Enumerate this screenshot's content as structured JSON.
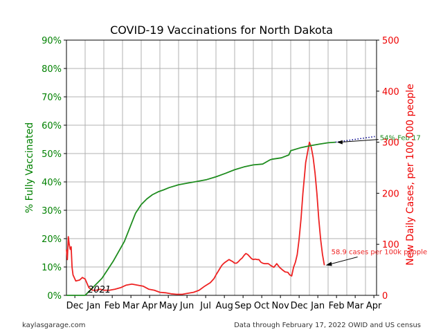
{
  "chart_data": {
    "type": "line",
    "title": "COVID-19 Vaccinations for North Dakota",
    "ylabel_left": "% Fully Vaccinated",
    "ylabel_right": "New Daily Cases, per 100,000 people",
    "ylim_left": [
      0,
      90
    ],
    "ylim_right": [
      0,
      500
    ],
    "left_ticks": [
      "0%",
      "10%",
      "20%",
      "30%",
      "40%",
      "50%",
      "60%",
      "70%",
      "80%",
      "90%"
    ],
    "right_ticks": [
      "0",
      "100",
      "200",
      "300",
      "400",
      "500"
    ],
    "x_ticks": [
      "Dec",
      "Jan",
      "Feb",
      "Mar",
      "Apr",
      "May",
      "Jun",
      "Jul",
      "Aug",
      "Sep",
      "Oct",
      "Nov",
      "Dec",
      "Jan",
      "Feb",
      "Mar",
      "Apr"
    ],
    "year_label": "2021",
    "grid": true,
    "colors": {
      "vaccinated": "#1e8c1e",
      "cases": "#ee2222",
      "projection": "#00008b",
      "left_axis": "#008000",
      "right_axis": "#ee0000"
    },
    "series": [
      {
        "id": "vaccinated",
        "axis": "left",
        "x_months": [
          0.0,
          1.0,
          1.3,
          1.6,
          1.9,
          2.2,
          2.5,
          2.8,
          3.1,
          3.4,
          3.7,
          4.0,
          4.3,
          4.6,
          4.9,
          5.2,
          5.5,
          6.0,
          6.5,
          7.0,
          7.5,
          8.0,
          8.5,
          9.0,
          9.5,
          10.0,
          10.5,
          10.9,
          11.0,
          11.5,
          11.9,
          12.0,
          12.5,
          13.0,
          13.5,
          14.0,
          14.4
        ],
        "values": [
          0.0,
          0.0,
          2.0,
          4.0,
          6.0,
          9.0,
          12.0,
          15.5,
          19.0,
          24.0,
          29.0,
          32.0,
          34.0,
          35.5,
          36.5,
          37.2,
          38.0,
          39.0,
          39.6,
          40.2,
          40.8,
          41.8,
          43.0,
          44.3,
          45.3,
          46.0,
          46.3,
          47.8,
          48.0,
          48.5,
          49.5,
          51.0,
          52.0,
          52.7,
          53.3,
          53.8,
          54.0
        ]
      },
      {
        "id": "cases",
        "axis": "right",
        "x_months": [
          0.0,
          0.05,
          0.1,
          0.15,
          0.2,
          0.25,
          0.3,
          0.35,
          0.5,
          0.7,
          0.85,
          1.0,
          1.2,
          1.4,
          1.6,
          1.8,
          2.0,
          2.3,
          2.6,
          2.9,
          3.2,
          3.5,
          3.8,
          4.1,
          4.4,
          4.7,
          5.0,
          5.3,
          5.6,
          5.9,
          6.2,
          6.5,
          6.8,
          7.1,
          7.4,
          7.7,
          7.9,
          8.0,
          8.1,
          8.2,
          8.3,
          8.4,
          8.5,
          8.7,
          8.8,
          8.9,
          9.0,
          9.1,
          9.2,
          9.3,
          9.4,
          9.5,
          9.6,
          9.7,
          9.8,
          9.9,
          10.0,
          10.1,
          10.2,
          10.3,
          10.4,
          10.5,
          10.6,
          10.8,
          10.95,
          11.1,
          11.25,
          11.4,
          11.55,
          11.7,
          11.85,
          11.95,
          12.05,
          12.15,
          12.25,
          12.35,
          12.45,
          12.55,
          12.65,
          12.75,
          12.8,
          12.9,
          13.0,
          13.1,
          13.2,
          13.3,
          13.4,
          13.5,
          13.6,
          13.7,
          13.8
        ],
        "values": [
          90,
          70,
          115,
          100,
          90,
          95,
          55,
          40,
          28,
          30,
          35,
          32,
          15,
          10,
          10,
          12,
          10,
          10,
          12,
          15,
          20,
          22,
          20,
          18,
          12,
          10,
          6,
          5,
          3,
          2,
          2,
          4,
          6,
          10,
          18,
          25,
          33,
          40,
          46,
          52,
          58,
          62,
          65,
          70,
          68,
          66,
          63,
          63,
          66,
          70,
          73,
          78,
          82,
          80,
          76,
          72,
          70,
          71,
          70,
          70,
          65,
          63,
          62,
          62,
          58,
          55,
          62,
          55,
          50,
          46,
          45,
          40,
          38,
          55,
          65,
          80,
          110,
          150,
          200,
          240,
          260,
          280,
          300,
          290,
          270,
          240,
          200,
          150,
          110,
          80,
          58.9
        ]
      },
      {
        "id": "projection",
        "axis": "left",
        "style": "dotted",
        "x_months": [
          14.4,
          16.5
        ],
        "values": [
          54.0,
          56.0
        ]
      }
    ],
    "annotations": [
      {
        "text": "54% Feb 17",
        "x_month": 14.4,
        "value": 54,
        "axis": "left"
      },
      {
        "text": "58.9 cases per 100k people",
        "x_month": 13.8,
        "value": 58.9,
        "axis": "right"
      }
    ],
    "footer_left": "kaylasgarage.com",
    "footer_right": "Data through February 17, 2022 OWID and US census"
  }
}
